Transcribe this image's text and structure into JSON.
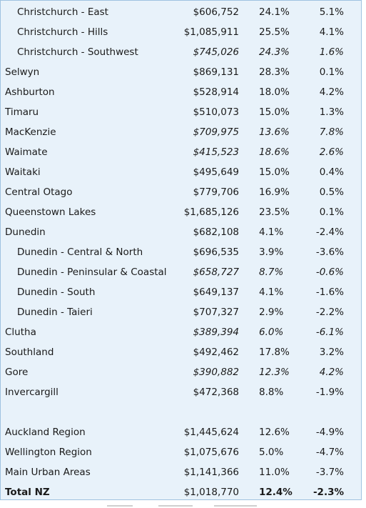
{
  "rows": [
    {
      "name": "Christchurch - East",
      "price": "$606,752",
      "p1": "24.1%",
      "p2": "5.1%",
      "indent": true,
      "italic": false,
      "bold": false
    },
    {
      "name": "Christchurch - Hills",
      "price": "$1,085,911",
      "p1": "25.5%",
      "p2": "4.1%",
      "indent": true,
      "italic": false,
      "bold": false
    },
    {
      "name": "Christchurch - Southwest",
      "price": "$745,026",
      "p1": "24.3%",
      "p2": "1.6%",
      "indent": true,
      "italic": true,
      "bold": false
    },
    {
      "name": "Selwyn",
      "price": "$869,131",
      "p1": "28.3%",
      "p2": "0.1%",
      "indent": false,
      "italic": false,
      "bold": false
    },
    {
      "name": "Ashburton",
      "price": "$528,914",
      "p1": "18.0%",
      "p2": "4.2%",
      "indent": false,
      "italic": false,
      "bold": false
    },
    {
      "name": "Timaru",
      "price": "$510,073",
      "p1": "15.0%",
      "p2": "1.3%",
      "indent": false,
      "italic": false,
      "bold": false
    },
    {
      "name": "MacKenzie",
      "price": "$709,975",
      "p1": "13.6%",
      "p2": "7.8%",
      "indent": false,
      "italic": true,
      "bold": false
    },
    {
      "name": "Waimate",
      "price": "$415,523",
      "p1": "18.6%",
      "p2": "2.6%",
      "indent": false,
      "italic": true,
      "bold": false
    },
    {
      "name": "Waitaki",
      "price": "$495,649",
      "p1": "15.0%",
      "p2": "0.4%",
      "indent": false,
      "italic": false,
      "bold": false
    },
    {
      "name": "Central Otago",
      "price": "$779,706",
      "p1": "16.9%",
      "p2": "0.5%",
      "indent": false,
      "italic": false,
      "bold": false
    },
    {
      "name": "Queenstown Lakes",
      "price": "$1,685,126",
      "p1": "23.5%",
      "p2": "0.1%",
      "indent": false,
      "italic": false,
      "bold": false
    },
    {
      "name": "Dunedin",
      "price": "$682,108",
      "p1": "4.1%",
      "p2": "-2.4%",
      "indent": false,
      "italic": false,
      "bold": false
    },
    {
      "name": "Dunedin - Central & North",
      "price": "$696,535",
      "p1": "3.9%",
      "p2": "-3.6%",
      "indent": true,
      "italic": false,
      "bold": false
    },
    {
      "name": "Dunedin - Peninsular & Coastal",
      "price": "$658,727",
      "p1": "8.7%",
      "p2": "-0.6%",
      "indent": true,
      "italic": true,
      "bold": false
    },
    {
      "name": "Dunedin - South",
      "price": "$649,137",
      "p1": "4.1%",
      "p2": "-1.6%",
      "indent": true,
      "italic": false,
      "bold": false
    },
    {
      "name": "Dunedin - Taieri",
      "price": "$707,327",
      "p1": "2.9%",
      "p2": "-2.2%",
      "indent": true,
      "italic": false,
      "bold": false
    },
    {
      "name": "Clutha",
      "price": "$389,394",
      "p1": "6.0%",
      "p2": "-6.1%",
      "indent": false,
      "italic": true,
      "bold": false
    },
    {
      "name": "Southland",
      "price": "$492,462",
      "p1": "17.8%",
      "p2": "3.2%",
      "indent": false,
      "italic": false,
      "bold": false
    },
    {
      "name": "Gore",
      "price": "$390,882",
      "p1": "12.3%",
      "p2": "4.2%",
      "indent": false,
      "italic": true,
      "bold": false
    },
    {
      "name": "Invercargill",
      "price": "$472,368",
      "p1": "8.8%",
      "p2": "-1.9%",
      "indent": false,
      "italic": false,
      "bold": false
    }
  ],
  "summary_rows": [
    {
      "name": "Auckland Region",
      "price": "$1,445,624",
      "p1": "12.6%",
      "p2": "-4.9%",
      "indent": false,
      "italic": false,
      "bold": false
    },
    {
      "name": "Wellington Region",
      "price": "$1,075,676",
      "p1": "5.0%",
      "p2": "-4.7%",
      "indent": false,
      "italic": false,
      "bold": false
    },
    {
      "name": "Main Urban Areas",
      "price": "$1,141,366",
      "p1": "11.0%",
      "p2": "-3.7%",
      "indent": false,
      "italic": false,
      "bold": false
    },
    {
      "name": "Total NZ",
      "price": "$1,018,770",
      "p1": "12.4%",
      "p2": "-2.3%",
      "indent": false,
      "italic": false,
      "bold": true
    }
  ],
  "colors": {
    "table_bg": "#e8f2fa",
    "border": "#9fc2e0",
    "text": "#1a1a1a"
  }
}
